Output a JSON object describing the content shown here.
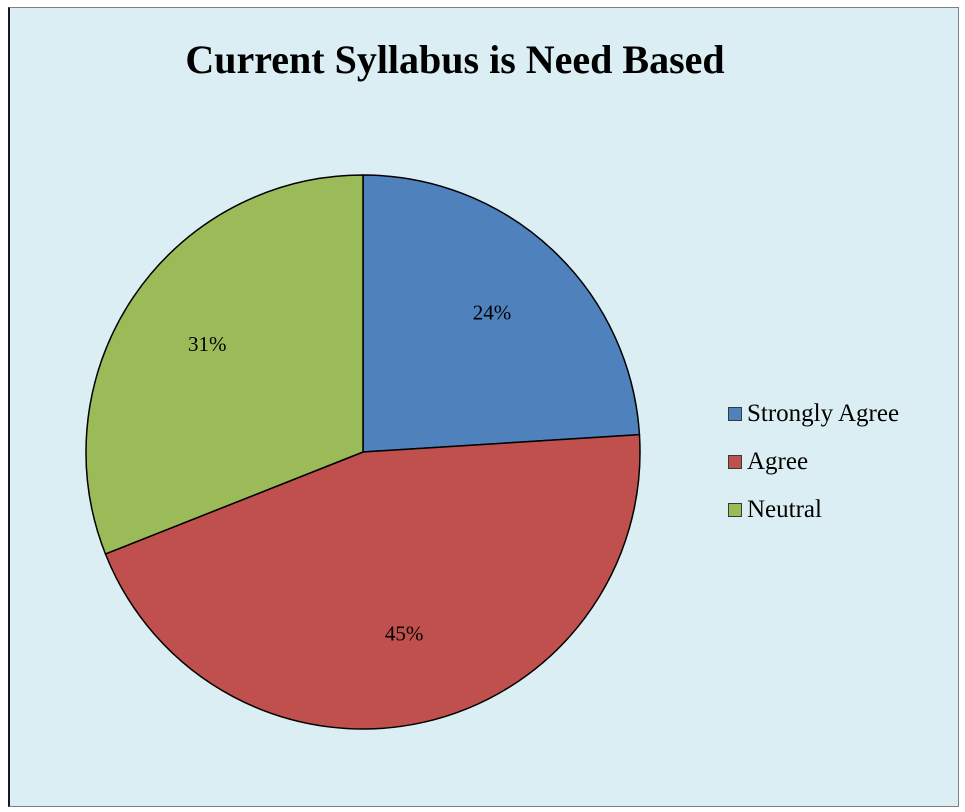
{
  "chart_data": {
    "type": "pie",
    "title": "Current Syllabus is Need Based",
    "legend_position": "right",
    "slices": [
      {
        "label": "Strongly Agree",
        "value": 24,
        "value_label": "24%",
        "color": "#4f81bd"
      },
      {
        "label": "Agree",
        "value": 45,
        "value_label": "45%",
        "color": "#c0504d"
      },
      {
        "label": "Neutral",
        "value": 31,
        "value_label": "31%",
        "color": "#9bbb59"
      }
    ]
  }
}
